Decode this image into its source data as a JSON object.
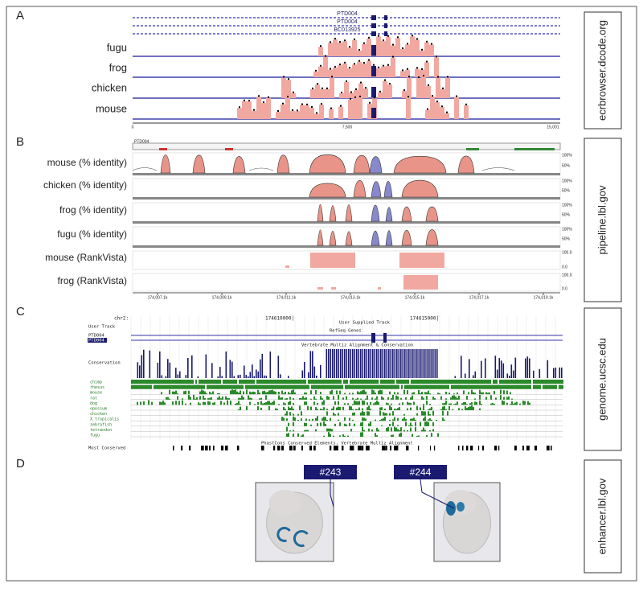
{
  "panels": [
    {
      "label": "A",
      "source": "ecrbrowser.dcode.org",
      "genes": [
        "PTD004",
        "PTD004",
        "BC013925"
      ],
      "tracks": [
        "fugu",
        "frog",
        "chicken",
        "mouse"
      ],
      "axis": [
        "0",
        "7,500",
        "15,001"
      ]
    },
    {
      "label": "B",
      "source": "pipeline.lbl.gov",
      "gene": "PTD004",
      "tracks": [
        "mouse (% identity)",
        "chicken (% identity)",
        "frog (% identity)",
        "fugu (% identity)",
        "mouse (RankVista)",
        "frog (RankVista)"
      ],
      "identity_scale": [
        "100%",
        "50%"
      ],
      "rank_scale": [
        "100.0",
        "0.0"
      ],
      "axis": [
        "174,007.1k",
        "174,009.1k",
        "174,011.1k",
        "174,013.1k",
        "174,015.1k",
        "174,017.1k",
        "174,019.1k"
      ]
    },
    {
      "label": "C",
      "source": "genome.ucsc.edu",
      "chrom": "chr2:",
      "positions": [
        "174610000|",
        "174615000|"
      ],
      "user_track_title": "User Supplied Track",
      "user_track": "User Track",
      "refseq_title": "RefSeq Genes",
      "refseq": [
        "PTD004",
        "PTD004"
      ],
      "multiz_title": "Vertebrate Multiz Alignment & Conservation",
      "conservation": "Conservation",
      "species": [
        "chimp",
        "rhesus",
        "mouse",
        "rat",
        "dog",
        "opossum",
        "chicken",
        "X_tropicalis",
        "zebrafish",
        "tetraodon",
        "fugu"
      ],
      "phastcons_title": "PhastCons Conserved Elements, Vertebrate Multiz Alignment",
      "most_conserved": "Most Conserved"
    },
    {
      "label": "D",
      "source": "enhancer.lbl.gov",
      "elements": [
        "#243",
        "#244"
      ]
    }
  ]
}
